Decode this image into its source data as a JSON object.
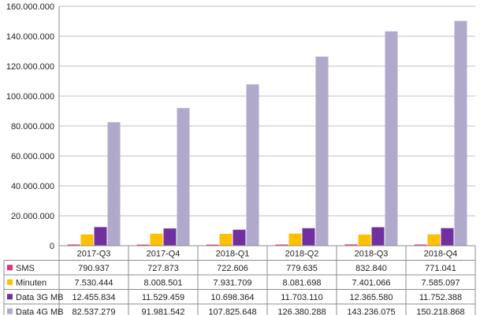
{
  "chart_data": {
    "type": "bar",
    "categories": [
      "2017-Q3",
      "2017-Q4",
      "2018-Q1",
      "2018-Q2",
      "2018-Q3",
      "2018-Q4"
    ],
    "series": [
      {
        "name": "SMS",
        "color": "#e0307f",
        "values": [
          790937,
          727873,
          722606,
          779635,
          832840,
          771041
        ],
        "labels": [
          "790.937",
          "727.873",
          "722.606",
          "779.635",
          "832.840",
          "771.041"
        ]
      },
      {
        "name": "Minuten",
        "color": "#ffc000",
        "values": [
          7530444,
          8008501,
          7931709,
          8081698,
          7401066,
          7585097
        ],
        "labels": [
          "7.530.444",
          "8.008.501",
          "7.931.709",
          "8.081.698",
          "7.401.066",
          "7.585.097"
        ]
      },
      {
        "name": "Data 3G MB",
        "color": "#7030a0",
        "values": [
          12455834,
          11529459,
          10698364,
          11703110,
          12365580,
          11752388
        ],
        "labels": [
          "12.455.834",
          "11.529.459",
          "10.698.364",
          "11.703.110",
          "12.365.580",
          "11.752.388"
        ]
      },
      {
        "name": "Data 4G MB",
        "color": "#b1a9cc",
        "values": [
          82537279,
          91981542,
          107825648,
          126380288,
          143236075,
          150218868
        ],
        "labels": [
          "82.537.279",
          "91.981.542",
          "107.825.648",
          "126.380.288",
          "143.236.075",
          "150.218.868"
        ]
      }
    ],
    "ylim": [
      0,
      160000000
    ],
    "yticks": [
      0,
      20000000,
      40000000,
      60000000,
      80000000,
      100000000,
      120000000,
      140000000,
      160000000
    ],
    "ytick_labels": [
      "0",
      "20.000.000",
      "40.000.000",
      "60.000.000",
      "80.000.000",
      "100.000.000",
      "120.000.000",
      "140.000.000",
      "160.000.000"
    ],
    "grid": "horizontal",
    "legend": "data-table",
    "title": "",
    "xlabel": "",
    "ylabel": ""
  }
}
